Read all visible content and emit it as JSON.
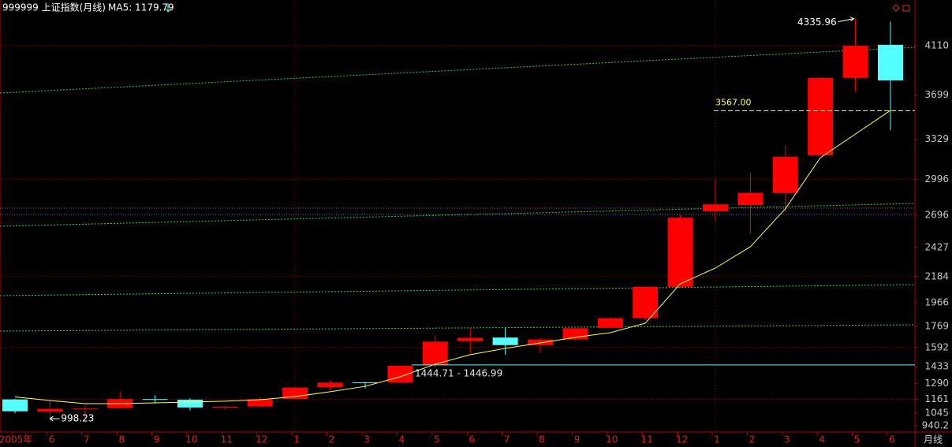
{
  "chart_data": {
    "type": "candlestick",
    "title": "999999 上证指数(月线)",
    "ma_label": "MA5: 1179.79",
    "period_label": "月线",
    "categories": [
      "2005年",
      "6",
      "7",
      "8",
      "9",
      "10",
      "11",
      "12",
      "1",
      "2",
      "3",
      "4",
      "5",
      "6",
      "7",
      "8",
      "9",
      "10",
      "11",
      "12",
      "1",
      "2",
      "3",
      "4",
      "5",
      "6"
    ],
    "open": [
      1159,
      1056,
      1077,
      1086,
      1162,
      1157,
      1091,
      1100,
      1163,
      1261,
      1301,
      1299,
      1445,
      1645,
      1675,
      1612,
      1659,
      1756,
      1837,
      2098,
      2728,
      2780,
      2881,
      3196,
      3841,
      4117
    ],
    "high": [
      1164,
      1146,
      1103,
      1223,
      1193,
      1167,
      1103,
      1178,
      1262,
      1318,
      1305,
      1445,
      1693,
      1752,
      1757,
      1673,
      1766,
      1845,
      2101,
      2698,
      2994,
      3050,
      3275,
      3848,
      4335.96,
      4311
    ],
    "low": [
      1043,
      998.23,
      1004,
      1085,
      1125,
      1067,
      1074,
      1097,
      1162,
      1237,
      1251,
      1295,
      1426,
      1541,
      1532,
      1546,
      1649,
      1756,
      1820,
      2091,
      2646,
      2541,
      2723,
      3196,
      3724,
      3404
    ],
    "close": [
      1060,
      1080,
      1083,
      1162,
      1155,
      1092,
      1099,
      1161,
      1258,
      1299,
      1298,
      1440,
      1641,
      1672,
      1612,
      1658,
      1753,
      1837,
      2099,
      2675,
      2786,
      2882,
      3183,
      3841,
      4109,
      3820
    ],
    "up_color": "#ff0000",
    "down_color": "#54ffff",
    "ma": {
      "color": "#ffff54",
      "values": [
        1179.79,
        1150,
        1124,
        1124,
        1130,
        1137,
        1144,
        1157,
        1183,
        1223,
        1268,
        1348,
        1453,
        1532,
        1585,
        1630,
        1677,
        1716,
        1795,
        2124,
        2255,
        2433,
        2750,
        3176,
        3373,
        3570
      ]
    },
    "ylim": [
      887,
      4491
    ],
    "yticks": [
      940.2,
      1045,
      1161,
      1290,
      1433,
      1592,
      1769,
      1966,
      2184,
      2427,
      2696,
      2996,
      3329,
      3699,
      4110
    ],
    "grid": true,
    "high_marker": {
      "label": "4335.96",
      "value": 4335.96,
      "index": 24
    },
    "low_marker": {
      "label": "998.23",
      "value": 998.23,
      "index": 1
    },
    "level_line": {
      "label": "3567.00",
      "value": 3567
    },
    "range_line": {
      "label": "1444.71 - 1446.99",
      "values": [
        1444.71,
        1446.99
      ]
    }
  }
}
